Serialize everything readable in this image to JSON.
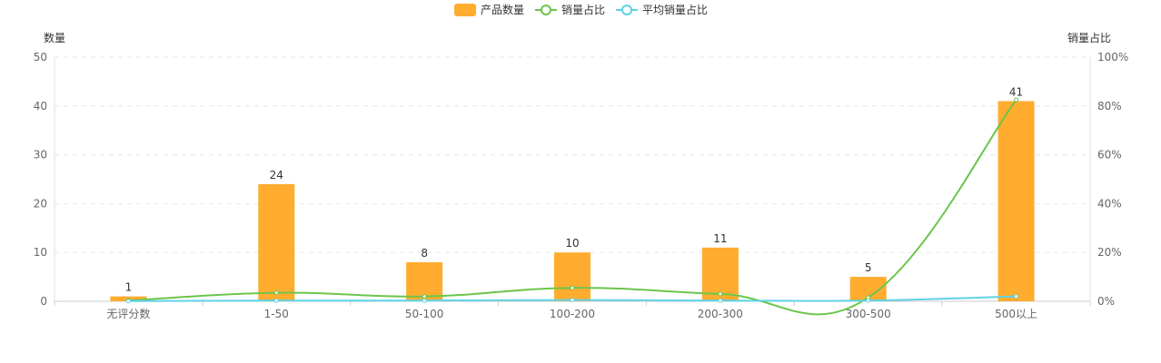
{
  "chart_data": {
    "type": "bar",
    "categories": [
      "无评分数",
      "1-50",
      "50-100",
      "100-200",
      "200-300",
      "300-500",
      "500以上"
    ],
    "series": [
      {
        "name": "产品数量",
        "type": "bar",
        "axis": "left",
        "color": "#FFAC2F",
        "values": [
          1,
          24,
          8,
          10,
          11,
          5,
          41
        ]
      },
      {
        "name": "销量占比",
        "type": "line",
        "axis": "right",
        "color": "#6CC54B",
        "values": [
          0.3,
          3.5,
          2.0,
          5.5,
          3.0,
          1.5,
          82.5
        ]
      },
      {
        "name": "平均销量占比",
        "type": "line",
        "axis": "right",
        "color": "#5FD3E6",
        "values": [
          0.1,
          0.3,
          0.3,
          0.5,
          0.3,
          0.3,
          2.0
        ]
      }
    ],
    "left_axis": {
      "name": "数量",
      "min": 0,
      "max": 50,
      "ticks": [
        0,
        10,
        20,
        30,
        40,
        50
      ]
    },
    "right_axis": {
      "name": "销量占比",
      "min": 0,
      "max": 100,
      "ticks": [
        0,
        20,
        40,
        60,
        80,
        100
      ],
      "tick_labels": [
        "0%",
        "20%",
        "40%",
        "60%",
        "80%",
        "100%"
      ]
    },
    "grid": true,
    "legend_position": "top-center",
    "data_labels": true
  }
}
